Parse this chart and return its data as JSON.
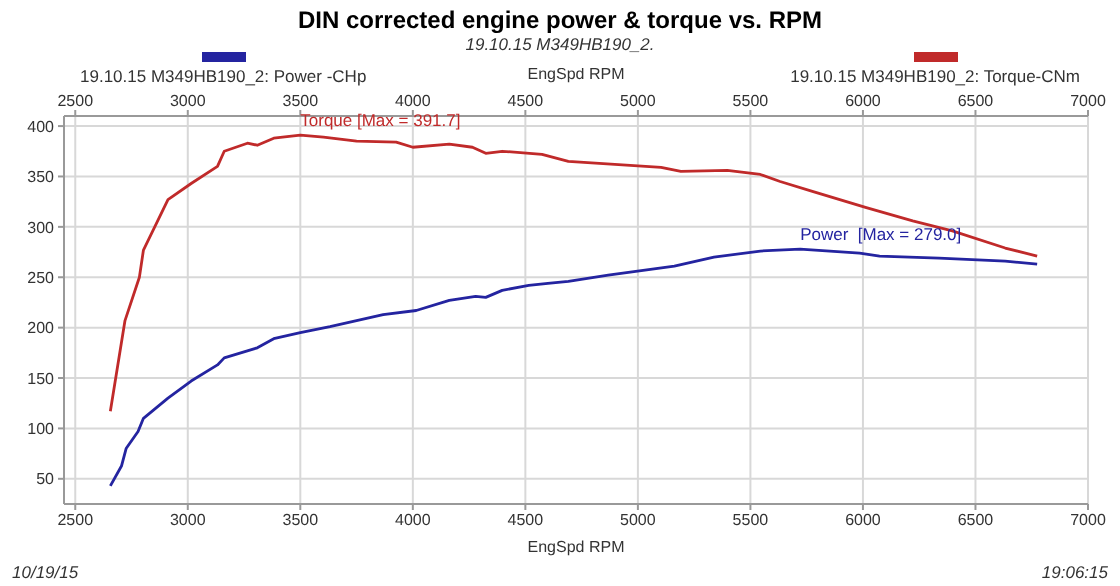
{
  "chart_data": {
    "type": "line",
    "title": "DIN corrected engine power & torque vs. RPM",
    "subtitle": "19.10.15 M349HB190_2.",
    "xlabel": "EngSpd RPM",
    "x2label": "EngSpd RPM",
    "legend": "top",
    "grid": true,
    "marker": "none",
    "line_style": "solid",
    "xlim": [
      2450,
      7000
    ],
    "xticks": [
      2500,
      3000,
      3500,
      4000,
      4500,
      5000,
      5500,
      6000,
      6500,
      7000
    ],
    "x2lim": [
      2450,
      7000
    ],
    "x2ticks": [
      2500,
      3000,
      3500,
      4000,
      4500,
      5000,
      5500,
      6000,
      6500,
      7000
    ],
    "ylim": [
      25,
      410
    ],
    "yticks": [
      50,
      100,
      150,
      200,
      250,
      300,
      350,
      400
    ],
    "series": [
      {
        "name": "19.10.15 M349HB190_2: Power -CHp",
        "color": "#2424a0",
        "x": [
          2656,
          2706,
          2726,
          2779,
          2803,
          2912,
          3015,
          3132,
          3162,
          3309,
          3382,
          3500,
          3632,
          3750,
          3868,
          4015,
          4162,
          4279,
          4324,
          4397,
          4515,
          4600,
          4691,
          4868,
          5162,
          5338,
          5544,
          5721,
          5985,
          6074,
          6338,
          6632,
          6774
        ],
        "values": [
          43,
          63,
          80,
          97,
          110,
          130,
          147,
          163,
          170,
          180,
          189,
          195,
          201,
          207,
          213,
          217,
          227,
          231,
          230,
          237,
          242,
          244,
          246,
          252,
          261,
          270,
          276,
          278,
          274,
          271,
          269,
          266,
          263
        ]
      },
      {
        "name": "19.10.15 M349HB190_2: Torque-CNm",
        "color": "#c02a2a",
        "x": [
          2656,
          2721,
          2785,
          2803,
          2912,
          3015,
          3132,
          3162,
          3265,
          3309,
          3382,
          3500,
          3603,
          3750,
          3926,
          4000,
          4162,
          4265,
          4324,
          4397,
          4574,
          4691,
          5103,
          5191,
          5397,
          5544,
          5632,
          5779,
          6015,
          6221,
          6397,
          6632,
          6774
        ],
        "values": [
          117,
          207,
          250,
          277,
          327,
          343,
          360,
          375,
          383,
          381,
          388,
          391,
          389,
          385,
          384,
          379,
          382,
          379,
          373,
          375,
          372,
          365,
          359,
          355,
          356,
          352,
          345,
          335,
          319,
          306,
          296,
          279,
          271
        ]
      }
    ],
    "annotations": [
      {
        "text": "Torque [Max = 391.7]",
        "x": 3500,
        "y": 391.7
      },
      {
        "text": "Power  [Max = 279.0]",
        "x": 5721,
        "y": 279.0
      },
      "10/19/15",
      "19:06:15"
    ]
  }
}
